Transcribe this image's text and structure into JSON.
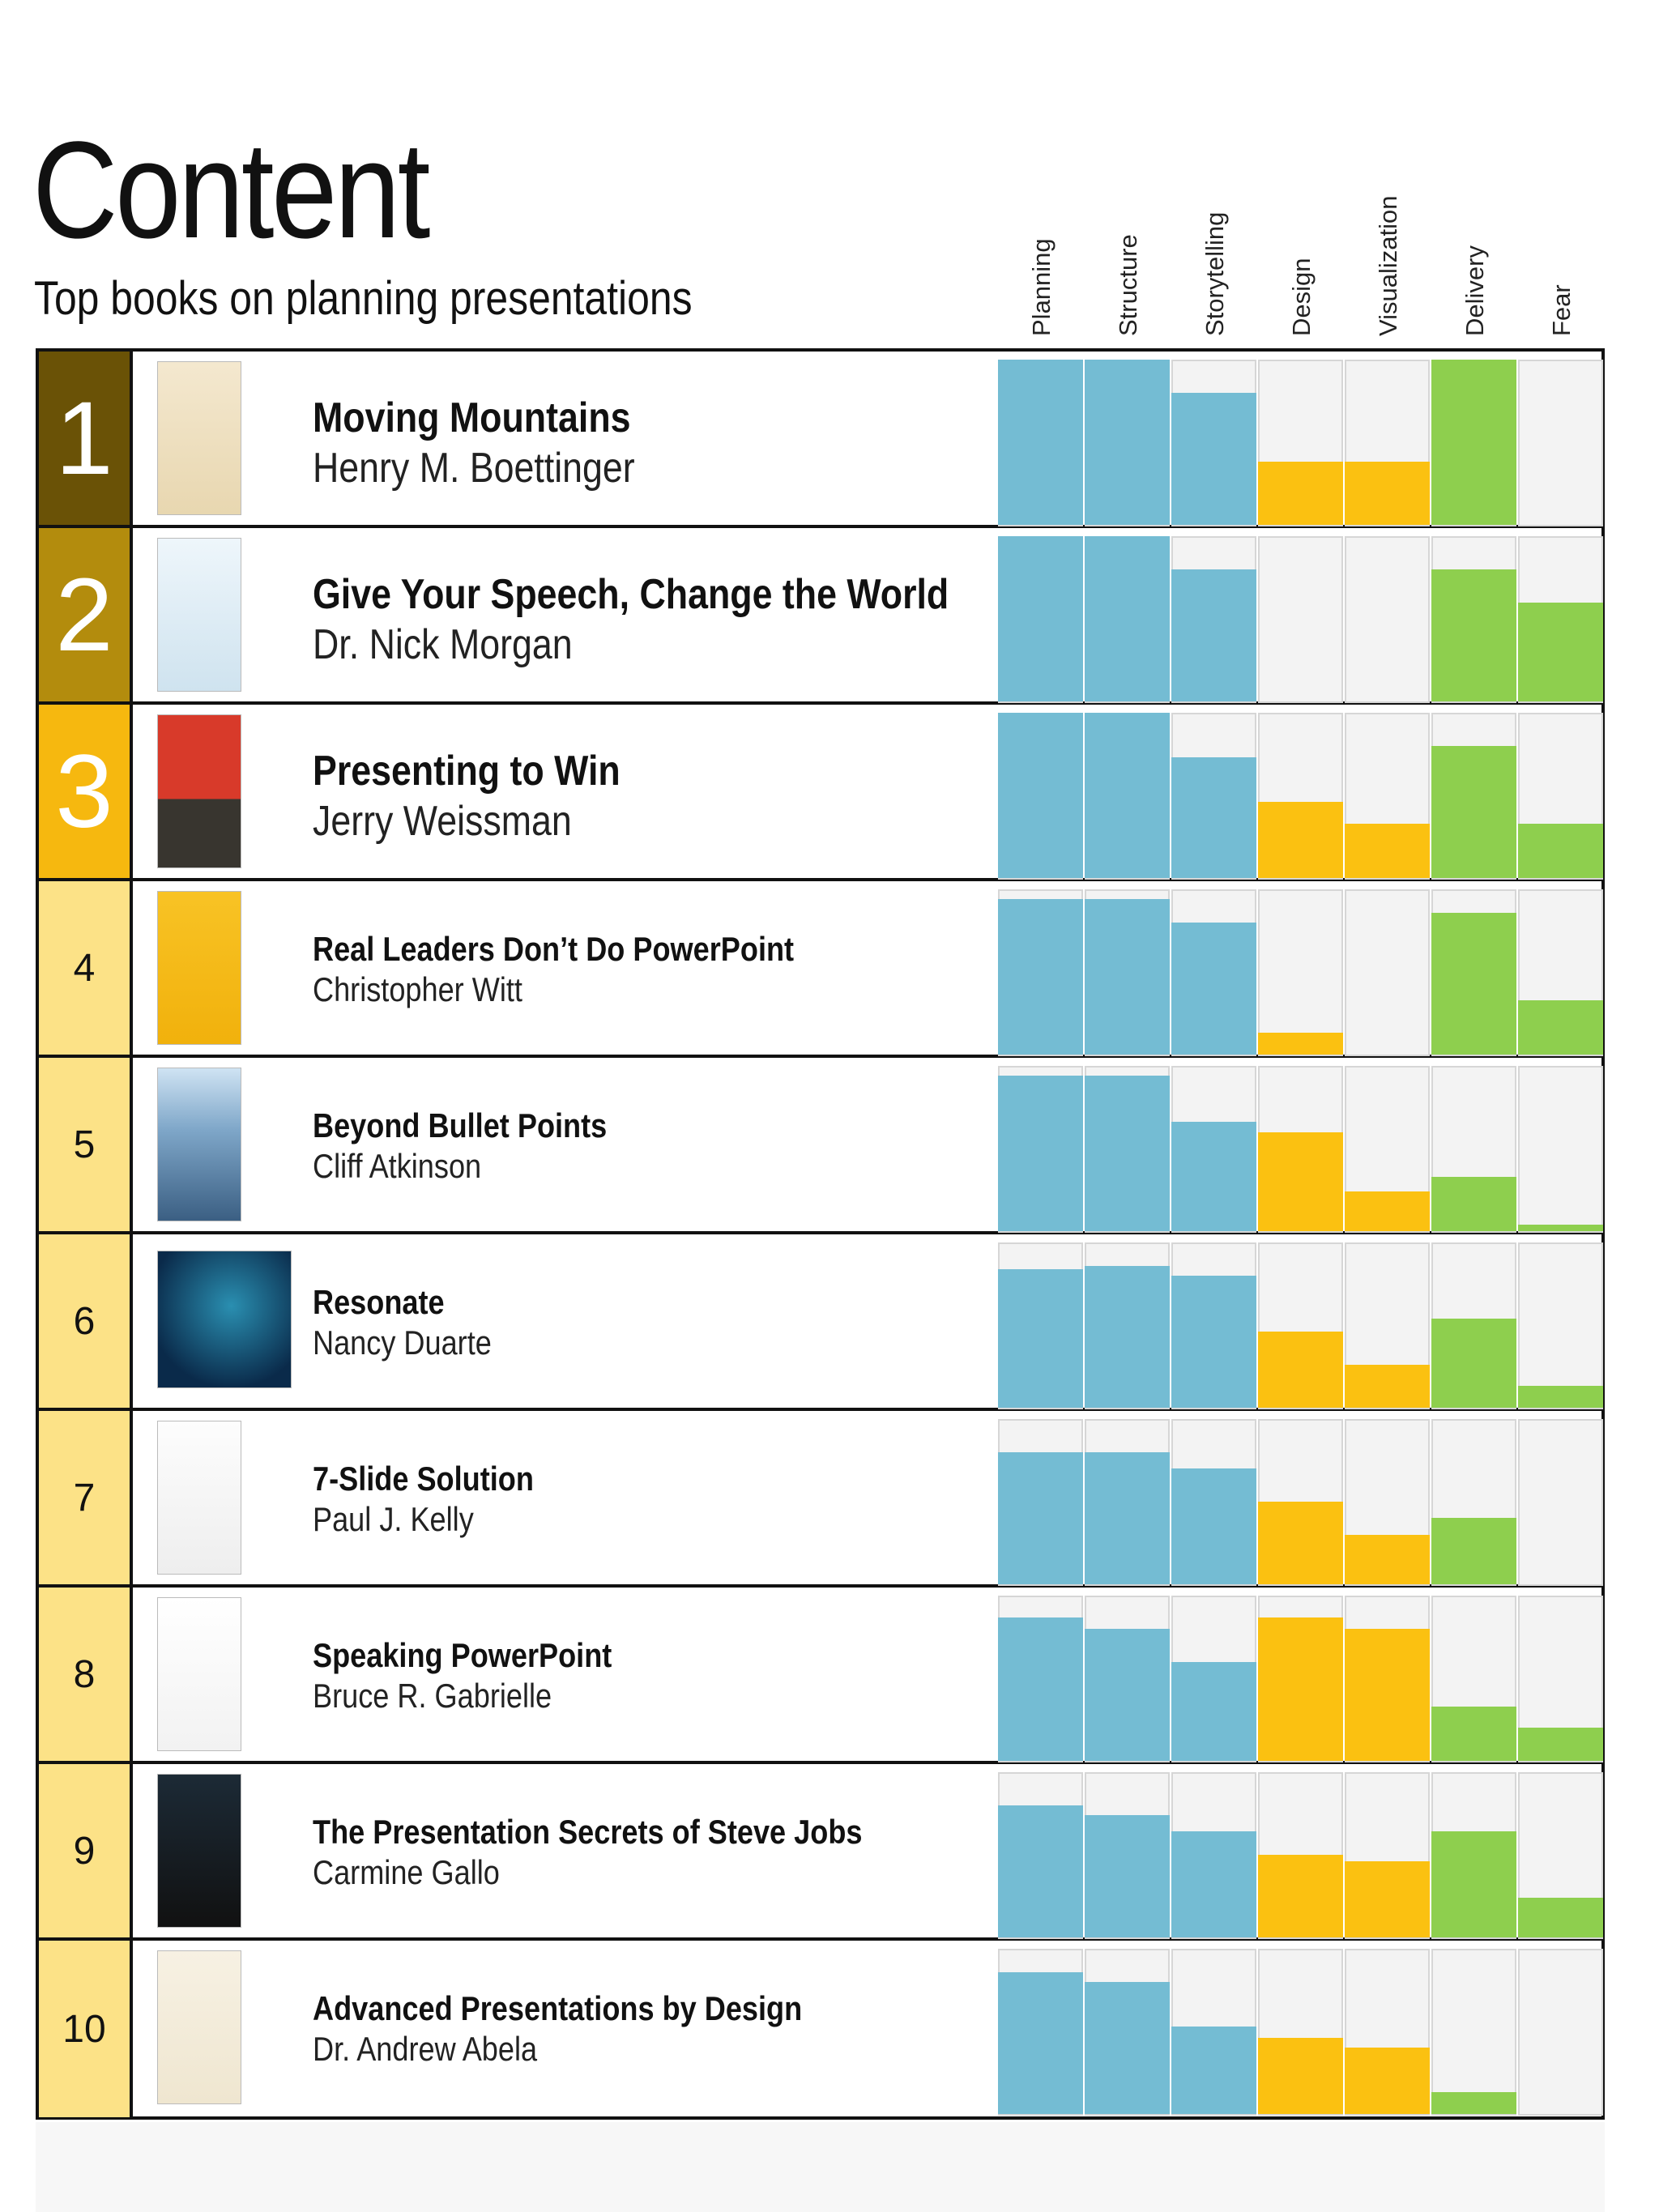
{
  "title": "Content",
  "subtitle": "Top books on planning presentations",
  "colors": {
    "planning_bar": "#74bcd3",
    "design_bar": "#fbc111",
    "delivery_bar": "#8ecf4e",
    "rank_1": "#6a5206",
    "rank_2": "#b38c0d",
    "rank_3": "#f6b80f",
    "rank_other": "#fce287"
  },
  "chart_data": {
    "type": "bar",
    "categories": [
      "Planning",
      "Structure",
      "Storytelling",
      "Design",
      "Visualization",
      "Delivery",
      "Fear"
    ],
    "rows": [
      {
        "rank": "1",
        "title": "Moving Mountains",
        "author": "Henry M. Boettinger",
        "values": [
          1.0,
          1.0,
          0.8,
          0.38,
          0.38,
          1.0,
          0.0
        ]
      },
      {
        "rank": "2",
        "title": "Give Your Speech, Change the World",
        "author": "Dr. Nick Morgan",
        "values": [
          1.0,
          1.0,
          0.8,
          0.0,
          0.0,
          0.8,
          0.6
        ]
      },
      {
        "rank": "3",
        "title": "Presenting to Win",
        "author": "Jerry Weissman",
        "values": [
          1.0,
          1.0,
          0.73,
          0.46,
          0.33,
          0.8,
          0.33
        ]
      },
      {
        "rank": "4",
        "title": "Real Leaders Don’t Do PowerPoint",
        "author": "Christopher Witt",
        "values": [
          0.94,
          0.94,
          0.8,
          0.13,
          0.0,
          0.86,
          0.33
        ]
      },
      {
        "rank": "5",
        "title": "Beyond Bullet Points",
        "author": "Cliff Atkinson",
        "values": [
          0.94,
          0.94,
          0.66,
          0.6,
          0.24,
          0.33,
          0.04
        ]
      },
      {
        "rank": "6",
        "title": "Resonate",
        "author": "Nancy Duarte",
        "values": [
          0.84,
          0.86,
          0.8,
          0.46,
          0.26,
          0.54,
          0.13
        ]
      },
      {
        "rank": "7",
        "title": "7-Slide Solution",
        "author": "Paul J. Kelly",
        "values": [
          0.8,
          0.8,
          0.7,
          0.5,
          0.3,
          0.4,
          0.0
        ]
      },
      {
        "rank": "8",
        "title": "Speaking PowerPoint",
        "author": "Bruce R. Gabrielle",
        "values": [
          0.87,
          0.8,
          0.6,
          0.87,
          0.8,
          0.33,
          0.2
        ]
      },
      {
        "rank": "9",
        "title": "The Presentation Secrets of Steve Jobs",
        "author": "Carmine Gallo",
        "values": [
          0.8,
          0.74,
          0.64,
          0.5,
          0.46,
          0.64,
          0.24
        ]
      },
      {
        "rank": "10",
        "title": "Advanced Presentations by Design",
        "author": "Dr. Andrew Abela",
        "values": [
          0.86,
          0.8,
          0.53,
          0.46,
          0.4,
          0.13,
          0.0
        ]
      }
    ],
    "ylim": [
      0,
      1
    ],
    "grid": true,
    "legend": "none"
  }
}
